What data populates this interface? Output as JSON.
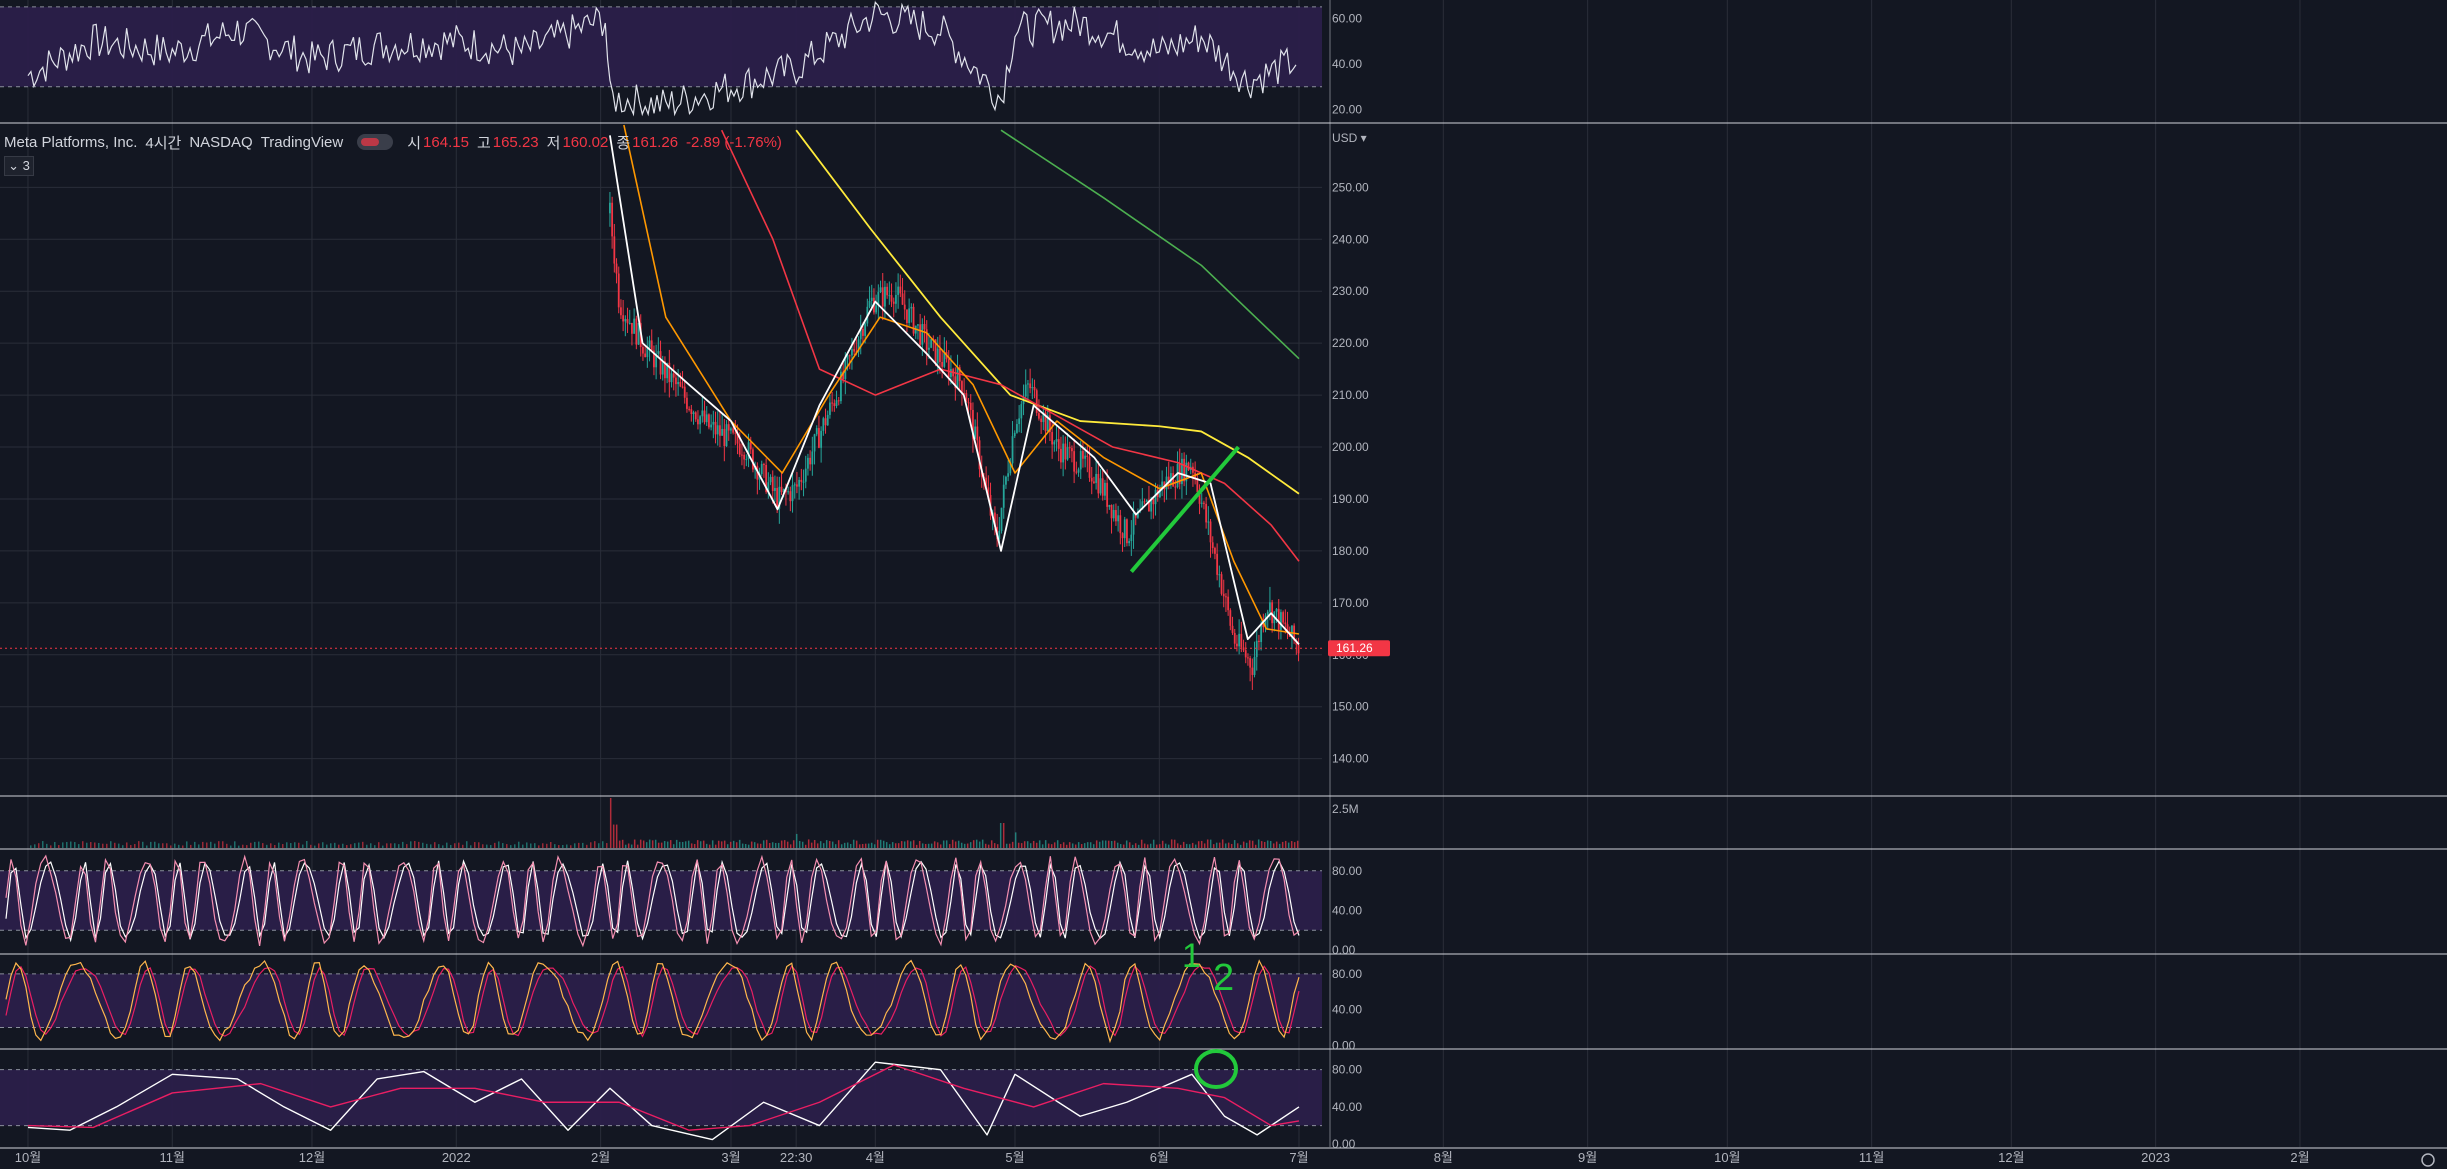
{
  "header": {
    "symbol_name": "Meta Platforms, Inc.",
    "interval": "4시간",
    "exchange": "NASDAQ",
    "source": "TradingView",
    "open_label": "시",
    "open_value": "164.15",
    "high_label": "고",
    "high_value": "165.23",
    "low_label": "저",
    "low_value": "160.02",
    "close_label": "종",
    "close_value": "161.26",
    "change": "-2.89 (-1.76%)",
    "collapse_label": "⌄ 3",
    "currency": "USD"
  },
  "last_price_badge": "161.26",
  "annotations": {
    "note_1": "1",
    "note_2": "2"
  },
  "colors": {
    "background": "#131722",
    "grid": "#2a2e39",
    "up": "#26a69a",
    "down": "#f23645",
    "band_fill": "#2a1f4a",
    "ema_white": "#ffffff",
    "ema_orange": "#ff9800",
    "ema_red": "#f23645",
    "ema_yellow": "#ffeb3b",
    "ema_green": "#4caf50",
    "drawing": "#22c93b",
    "osc_pink": "#f48fb1",
    "osc_yellow": "#ffb74d",
    "osc_magenta": "#e91e63"
  },
  "chart_data": [
    {
      "type": "line",
      "name": "top-oscillator",
      "yticks": [
        "60.00",
        "40.00",
        "20.00"
      ],
      "ylim": [
        15,
        68
      ],
      "band": [
        30,
        65
      ],
      "x": [
        "2021-10-01",
        "2021-10-15",
        "2021-11-01",
        "2021-11-15",
        "2021-12-01",
        "2021-12-15",
        "2022-01-01",
        "2022-01-15",
        "2022-02-02",
        "2022-02-03",
        "2022-02-15",
        "2022-03-01",
        "2022-03-15",
        "2022-04-01",
        "2022-04-15",
        "2022-04-28",
        "2022-05-01",
        "2022-05-15",
        "2022-06-01",
        "2022-06-10",
        "2022-06-20",
        "2022-07-01"
      ],
      "values": [
        35,
        50,
        45,
        55,
        42,
        48,
        50,
        45,
        60,
        25,
        22,
        30,
        38,
        62,
        55,
        25,
        55,
        58,
        45,
        52,
        32,
        42
      ]
    },
    {
      "type": "candlestick",
      "name": "price",
      "yticks": [
        "250.00",
        "240.00",
        "230.00",
        "220.00",
        "210.00",
        "200.00",
        "190.00",
        "180.00",
        "170.00",
        "160.00",
        "150.00",
        "140.00"
      ],
      "ylim": [
        133,
        262
      ],
      "last_price": 161.26,
      "anchors": {
        "x": [
          "2022-02-03",
          "2022-02-05",
          "2022-02-10",
          "2022-02-17",
          "2022-02-24",
          "2022-03-04",
          "2022-03-11",
          "2022-03-15",
          "2022-03-25",
          "2022-03-31",
          "2022-04-05",
          "2022-04-12",
          "2022-04-20",
          "2022-04-27",
          "2022-05-01",
          "2022-05-04",
          "2022-05-10",
          "2022-05-18",
          "2022-05-25",
          "2022-06-02",
          "2022-06-08",
          "2022-06-14",
          "2022-06-17",
          "2022-06-21",
          "2022-06-24",
          "2022-06-28",
          "2022-07-01"
        ],
        "close": [
          245,
          228,
          220,
          212,
          204,
          200,
          190,
          192,
          213,
          228,
          230,
          220,
          212,
          182,
          205,
          212,
          200,
          195,
          183,
          193,
          197,
          175,
          163,
          158,
          170,
          165,
          161.26
        ]
      },
      "ema_white": {
        "x": [
          "2022-02-03",
          "2022-02-10",
          "2022-02-20",
          "2022-03-01",
          "2022-03-11",
          "2022-03-20",
          "2022-04-01",
          "2022-04-12",
          "2022-04-20",
          "2022-04-28",
          "2022-05-05",
          "2022-05-18",
          "2022-05-27",
          "2022-06-05",
          "2022-06-12",
          "2022-06-20",
          "2022-06-25",
          "2022-07-01"
        ],
        "values": [
          260,
          220,
          212,
          205,
          188,
          208,
          228,
          218,
          210,
          180,
          208,
          198,
          187,
          195,
          193,
          163,
          168,
          162
        ]
      },
      "ema_orange": {
        "x": [
          "2022-02-06",
          "2022-02-15",
          "2022-03-01",
          "2022-03-12",
          "2022-03-22",
          "2022-04-02",
          "2022-04-12",
          "2022-04-22",
          "2022-05-01",
          "2022-05-10",
          "2022-05-20",
          "2022-06-01",
          "2022-06-10",
          "2022-06-17",
          "2022-06-24",
          "2022-07-01"
        ],
        "values": [
          262,
          225,
          205,
          195,
          210,
          225,
          222,
          212,
          195,
          205,
          198,
          192,
          195,
          178,
          165,
          164
        ]
      },
      "ema_red": {
        "x": [
          "2022-02-27",
          "2022-03-10",
          "2022-03-20",
          "2022-04-01",
          "2022-04-15",
          "2022-04-28",
          "2022-05-10",
          "2022-05-22",
          "2022-06-05",
          "2022-06-15",
          "2022-06-25",
          "2022-07-01"
        ],
        "values": [
          261,
          240,
          215,
          210,
          215,
          212,
          206,
          200,
          197,
          193,
          185,
          178
        ]
      },
      "ema_yellow": {
        "x": [
          "2022-03-15",
          "2022-03-31",
          "2022-04-15",
          "2022-04-30",
          "2022-05-15",
          "2022-06-01",
          "2022-06-10",
          "2022-06-20",
          "2022-07-01"
        ],
        "values": [
          261,
          242,
          225,
          210,
          205,
          204,
          203,
          198,
          191
        ]
      },
      "ema_green": {
        "x": [
          "2022-04-28",
          "2022-05-20",
          "2022-06-10",
          "2022-07-01"
        ],
        "values": [
          261,
          248,
          235,
          217
        ]
      },
      "trendline": {
        "x": [
          "2022-05-26",
          "2022-06-18"
        ],
        "values": [
          176,
          200
        ]
      }
    },
    {
      "type": "bar",
      "name": "volume",
      "yticks": [
        "2.5M"
      ],
      "ylim": [
        0,
        3.2
      ],
      "x": [
        "2022-02-03",
        "2022-02-04",
        "2022-03-15",
        "2022-04-28",
        "2022-05-01"
      ],
      "values": [
        3.2,
        1.5,
        0.9,
        1.6,
        1.0
      ]
    },
    {
      "type": "line",
      "name": "stochastic-1",
      "yticks": [
        "80.00",
        "40.00",
        "0.00"
      ],
      "ylim": [
        -3,
        100
      ],
      "band": [
        20,
        80
      ],
      "series_colors": [
        "#f48fb1",
        "#ffffff"
      ],
      "cycles": 40
    },
    {
      "type": "line",
      "name": "stochastic-2",
      "yticks": [
        "80.00",
        "40.00",
        "0.00"
      ],
      "ylim": [
        -3,
        100
      ],
      "band": [
        20,
        80
      ],
      "series_colors": [
        "#ffb74d",
        "#e91e63"
      ],
      "cycles": 22
    },
    {
      "type": "line",
      "name": "stochastic-3",
      "yticks": [
        "80.00",
        "40.00",
        "0.00"
      ],
      "ylim": [
        -3,
        100
      ],
      "band": [
        20,
        80
      ],
      "series": [
        {
          "x": [
            "2021-10-01",
            "2021-10-10",
            "2021-10-20",
            "2021-11-01",
            "2021-11-15",
            "2021-11-25",
            "2021-12-05",
            "2021-12-15",
            "2021-12-25",
            "2022-01-05",
            "2022-01-15",
            "2022-01-25",
            "2022-02-03",
            "2022-02-12",
            "2022-02-25",
            "2022-03-08",
            "2022-03-20",
            "2022-04-01",
            "2022-04-15",
            "2022-04-25",
            "2022-05-01",
            "2022-05-15",
            "2022-05-25",
            "2022-06-08",
            "2022-06-15",
            "2022-06-22",
            "2022-07-01"
          ],
          "values": [
            18,
            15,
            40,
            75,
            70,
            40,
            15,
            70,
            78,
            45,
            70,
            15,
            60,
            20,
            5,
            45,
            20,
            88,
            80,
            10,
            75,
            30,
            45,
            75,
            30,
            10,
            40
          ]
        },
        {
          "x": [
            "2021-10-01",
            "2021-10-15",
            "2021-11-01",
            "2021-11-20",
            "2021-12-05",
            "2021-12-20",
            "2022-01-05",
            "2022-01-20",
            "2022-02-05",
            "2022-02-20",
            "2022-03-05",
            "2022-03-20",
            "2022-04-05",
            "2022-04-20",
            "2022-05-05",
            "2022-05-20",
            "2022-06-05",
            "2022-06-15",
            "2022-06-25",
            "2022-07-01"
          ],
          "values": [
            20,
            18,
            55,
            65,
            40,
            60,
            60,
            45,
            45,
            15,
            20,
            45,
            85,
            60,
            40,
            65,
            60,
            50,
            20,
            25
          ]
        }
      ]
    }
  ],
  "x_axis": {
    "ticks": [
      {
        "date": "2021-10-01",
        "label": "10월"
      },
      {
        "date": "2021-11-01",
        "label": "11월"
      },
      {
        "date": "2021-12-01",
        "label": "12월"
      },
      {
        "date": "2022-01-01",
        "label": "2022"
      },
      {
        "date": "2022-02-01",
        "label": "2월"
      },
      {
        "date": "2022-03-01",
        "label": "3월"
      },
      {
        "date": "2022-03-15",
        "label": "22:30"
      },
      {
        "date": "2022-04-01",
        "label": "4월"
      },
      {
        "date": "2022-05-01",
        "label": "5월"
      },
      {
        "date": "2022-06-01",
        "label": "6월"
      },
      {
        "date": "2022-07-01",
        "label": "7월"
      },
      {
        "date": "2022-08-01",
        "label": "8월"
      },
      {
        "date": "2022-09-01",
        "label": "9월"
      },
      {
        "date": "2022-10-01",
        "label": "10월"
      },
      {
        "date": "2022-11-01",
        "label": "11월"
      },
      {
        "date": "2022-12-01",
        "label": "12월"
      },
      {
        "date": "2023-01-01",
        "label": "2023"
      },
      {
        "date": "2023-02-01",
        "label": "2월"
      }
    ]
  }
}
